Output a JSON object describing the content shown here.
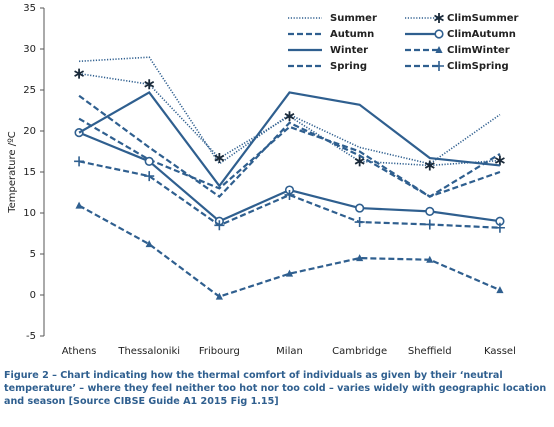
{
  "chart_data": {
    "type": "line",
    "y_label": "Temperature /ºC",
    "caption": "Figure 2 – Chart indicating how the thermal comfort of individuals as given by their ‘neutral temperature’ – where they feel neither too hot nor too cold – varies widely with geographic location and season [Source CIBSE Guide A1 2015 Fig 1.15]",
    "categories": [
      "Athens",
      "Thessaloniki",
      "Fribourg",
      "Milan",
      "Cambridge",
      "Sheffield",
      "Kassel"
    ],
    "ylim": [
      -5,
      35
    ],
    "yticks": [
      -5,
      0,
      5,
      10,
      15,
      20,
      25,
      30,
      35
    ],
    "grid": false,
    "series": [
      {
        "name": "Summer",
        "color": "#2f5f8f",
        "style": "dotted",
        "marker": "none",
        "values": [
          28.5,
          29,
          16,
          22,
          18,
          16,
          22
        ]
      },
      {
        "name": "ClimSummer",
        "color": "#2f5f8f",
        "style": "dotted",
        "marker": "star",
        "values": [
          27,
          25.7,
          16.7,
          21.8,
          16.3,
          15.8,
          16.4
        ]
      },
      {
        "name": "Autumn",
        "color": "#2f5f8f",
        "style": "dashed",
        "marker": "none",
        "values": [
          21.5,
          16.5,
          13,
          20.5,
          17.5,
          12,
          15
        ]
      },
      {
        "name": "ClimAutumn",
        "color": "#2f5f8f",
        "style": "solid",
        "marker": "circle",
        "values": [
          19.8,
          16.3,
          9,
          12.8,
          10.6,
          10.2,
          9
        ]
      },
      {
        "name": "Winter",
        "color": "#2f5f8f",
        "style": "solid",
        "marker": "none",
        "values": [
          19.8,
          24.7,
          13.3,
          24.7,
          23.2,
          16.7,
          15.8
        ]
      },
      {
        "name": "ClimWinter",
        "color": "#2f5f8f",
        "style": "dashed",
        "marker": "triangle",
        "values": [
          10.9,
          6.2,
          -0.2,
          2.6,
          4.5,
          4.3,
          0.6
        ]
      },
      {
        "name": "Spring",
        "color": "#2f5f8f",
        "style": "dashed",
        "marker": "none",
        "values": [
          24.3,
          18,
          12,
          21,
          17,
          12,
          17.2
        ]
      },
      {
        "name": "ClimSpring",
        "color": "#2f5f8f",
        "style": "dashed",
        "marker": "plus",
        "values": [
          16.3,
          14.5,
          8.5,
          12.2,
          8.9,
          8.6,
          8.2
        ]
      }
    ]
  }
}
